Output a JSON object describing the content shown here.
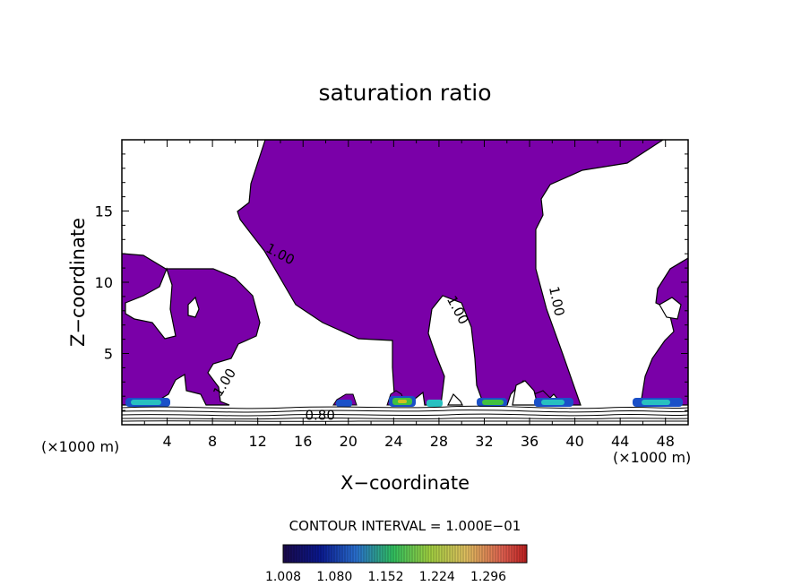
{
  "chart_data": {
    "type": "contour",
    "title": "saturation ratio",
    "xlabel": "X−coordinate",
    "ylabel": "Z−coordinate",
    "x_unit_label": "(×1000 m)",
    "y_unit_label": "(×1000 m)",
    "xlim": [
      0,
      50
    ],
    "ylim": [
      0,
      20
    ],
    "x_ticks": [
      4,
      8,
      12,
      16,
      20,
      24,
      28,
      32,
      36,
      40,
      44,
      48
    ],
    "y_ticks": [
      5,
      10,
      15
    ],
    "contour_labels": [
      {
        "text": "1.00",
        "x": 13.8,
        "y": 11.7,
        "angle": 28
      },
      {
        "text": "1.00",
        "x": 29.3,
        "y": 7.9,
        "angle": 62
      },
      {
        "text": "1.00",
        "x": 38.0,
        "y": 8.6,
        "angle": 78
      },
      {
        "text": "1.00",
        "x": 9.4,
        "y": 2.8,
        "angle": -58
      },
      {
        "text": "0.80",
        "x": 17.5,
        "y": 0.35,
        "angle": 0
      }
    ],
    "contour_interval_text": "CONTOUR INTERVAL = 1.000E−01",
    "colorbar": {
      "tick_labels": [
        "1.008",
        "1.080",
        "1.152",
        "1.224",
        "1.296"
      ],
      "range": [
        1.008,
        1.35
      ]
    },
    "fill_color": "#7a00a8",
    "grid": false
  }
}
